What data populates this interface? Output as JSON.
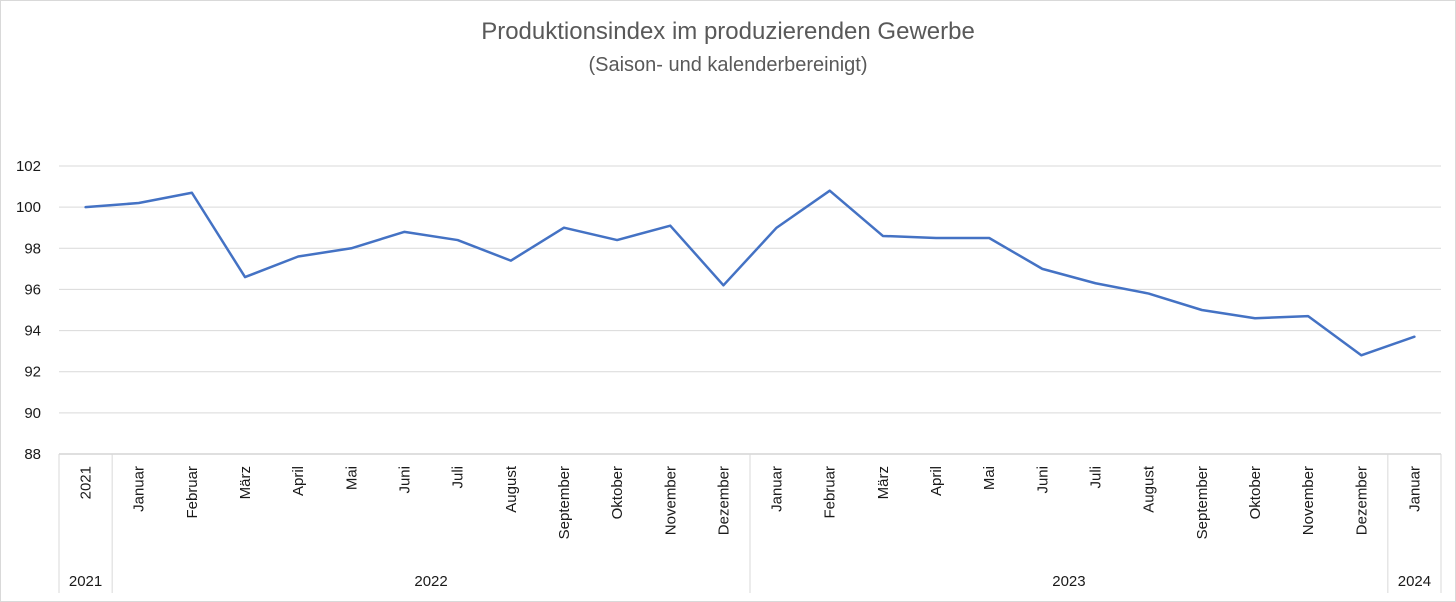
{
  "chart_data": {
    "type": "line",
    "title": "Produktionsindex im produzierenden Gewerbe",
    "subtitle": "(Saison- und kalenderbereinigt)",
    "ylim": [
      88,
      102
    ],
    "yticks": [
      "102",
      "100",
      "98",
      "96",
      "94",
      "92",
      "90",
      "88"
    ],
    "grid": true,
    "line_color": "#4472c4",
    "categories": [
      "2021",
      "Januar",
      "Februar",
      "März",
      "April",
      "Mai",
      "Juni",
      "Juli",
      "August",
      "September",
      "Oktober",
      "November",
      "Dezember",
      "Januar",
      "Februar",
      "März",
      "April",
      "Mai",
      "Juni",
      "Juli",
      "August",
      "September",
      "Oktober",
      "November",
      "Dezember",
      "Januar"
    ],
    "year_groups": [
      {
        "label": "2021",
        "count": 1
      },
      {
        "label": "2022",
        "count": 12
      },
      {
        "label": "2023",
        "count": 12
      },
      {
        "label": "2024",
        "count": 1
      }
    ],
    "values": [
      100.0,
      100.2,
      100.7,
      96.6,
      97.6,
      98.0,
      98.8,
      98.4,
      97.4,
      99.0,
      98.4,
      99.1,
      96.2,
      99.0,
      100.8,
      98.6,
      98.5,
      98.5,
      97.0,
      96.3,
      95.8,
      95.0,
      94.6,
      94.7,
      92.8,
      93.7
    ]
  }
}
